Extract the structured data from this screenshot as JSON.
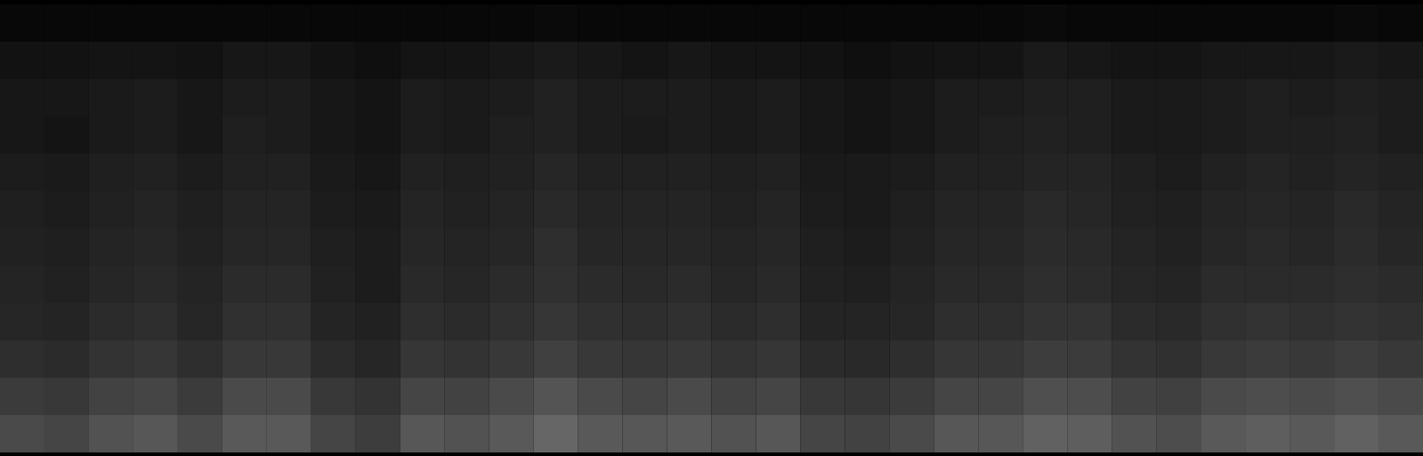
{
  "chart_data": {
    "type": "heatmap",
    "cells": [
      [
        0.03,
        0.03,
        0.03,
        0.03,
        0.03,
        0.03,
        0.03,
        0.03,
        0.03,
        0.03,
        0.03,
        0.03,
        0.04,
        0.03,
        0.03,
        0.03,
        0.03,
        0.03,
        0.03,
        0.03,
        0.03,
        0.03,
        0.03,
        0.04,
        0.03,
        0.03,
        0.03,
        0.03,
        0.03,
        0.03,
        0.04,
        0.03
      ],
      [
        0.07,
        0.07,
        0.08,
        0.08,
        0.07,
        0.09,
        0.09,
        0.07,
        0.06,
        0.08,
        0.08,
        0.09,
        0.1,
        0.09,
        0.08,
        0.09,
        0.08,
        0.08,
        0.07,
        0.06,
        0.07,
        0.08,
        0.08,
        0.1,
        0.09,
        0.08,
        0.08,
        0.09,
        0.09,
        0.09,
        0.1,
        0.09
      ],
      [
        0.09,
        0.09,
        0.1,
        0.11,
        0.09,
        0.11,
        0.11,
        0.09,
        0.08,
        0.11,
        0.1,
        0.11,
        0.13,
        0.11,
        0.11,
        0.11,
        0.1,
        0.11,
        0.09,
        0.08,
        0.09,
        0.11,
        0.11,
        0.12,
        0.12,
        0.1,
        0.1,
        0.11,
        0.12,
        0.11,
        0.12,
        0.11
      ],
      [
        0.09,
        0.08,
        0.1,
        0.11,
        0.09,
        0.12,
        0.11,
        0.09,
        0.08,
        0.11,
        0.1,
        0.12,
        0.13,
        0.11,
        0.1,
        0.11,
        0.1,
        0.11,
        0.09,
        0.08,
        0.09,
        0.11,
        0.12,
        0.13,
        0.12,
        0.1,
        0.1,
        0.11,
        0.12,
        0.12,
        0.13,
        0.11
      ],
      [
        0.11,
        0.1,
        0.12,
        0.13,
        0.11,
        0.13,
        0.13,
        0.1,
        0.09,
        0.13,
        0.12,
        0.13,
        0.15,
        0.13,
        0.13,
        0.13,
        0.12,
        0.13,
        0.1,
        0.1,
        0.11,
        0.13,
        0.13,
        0.14,
        0.14,
        0.12,
        0.11,
        0.13,
        0.14,
        0.13,
        0.14,
        0.13
      ],
      [
        0.12,
        0.11,
        0.13,
        0.14,
        0.12,
        0.14,
        0.14,
        0.11,
        0.1,
        0.14,
        0.13,
        0.14,
        0.16,
        0.14,
        0.14,
        0.14,
        0.13,
        0.14,
        0.11,
        0.1,
        0.12,
        0.14,
        0.14,
        0.16,
        0.15,
        0.13,
        0.12,
        0.14,
        0.15,
        0.14,
        0.16,
        0.14
      ],
      [
        0.13,
        0.12,
        0.14,
        0.15,
        0.13,
        0.15,
        0.15,
        0.12,
        0.11,
        0.15,
        0.14,
        0.15,
        0.18,
        0.15,
        0.15,
        0.15,
        0.14,
        0.15,
        0.12,
        0.11,
        0.13,
        0.15,
        0.15,
        0.17,
        0.16,
        0.14,
        0.13,
        0.15,
        0.16,
        0.15,
        0.17,
        0.15
      ],
      [
        0.14,
        0.13,
        0.15,
        0.16,
        0.14,
        0.17,
        0.17,
        0.13,
        0.11,
        0.16,
        0.15,
        0.17,
        0.19,
        0.17,
        0.16,
        0.17,
        0.15,
        0.16,
        0.13,
        0.12,
        0.14,
        0.16,
        0.16,
        0.18,
        0.17,
        0.15,
        0.14,
        0.17,
        0.17,
        0.17,
        0.18,
        0.17
      ],
      [
        0.15,
        0.14,
        0.17,
        0.18,
        0.15,
        0.19,
        0.19,
        0.14,
        0.13,
        0.18,
        0.17,
        0.19,
        0.21,
        0.19,
        0.18,
        0.19,
        0.17,
        0.18,
        0.14,
        0.14,
        0.15,
        0.18,
        0.18,
        0.2,
        0.2,
        0.17,
        0.16,
        0.19,
        0.2,
        0.19,
        0.2,
        0.19
      ],
      [
        0.18,
        0.17,
        0.2,
        0.21,
        0.18,
        0.22,
        0.22,
        0.17,
        0.15,
        0.21,
        0.2,
        0.22,
        0.25,
        0.22,
        0.21,
        0.22,
        0.2,
        0.21,
        0.17,
        0.16,
        0.18,
        0.21,
        0.21,
        0.24,
        0.23,
        0.2,
        0.19,
        0.22,
        0.23,
        0.22,
        0.24,
        0.22
      ],
      [
        0.23,
        0.22,
        0.26,
        0.27,
        0.23,
        0.29,
        0.29,
        0.22,
        0.2,
        0.27,
        0.26,
        0.29,
        0.33,
        0.29,
        0.27,
        0.29,
        0.26,
        0.27,
        0.22,
        0.21,
        0.23,
        0.27,
        0.27,
        0.31,
        0.3,
        0.26,
        0.25,
        0.29,
        0.3,
        0.29,
        0.31,
        0.29
      ],
      [
        0.29,
        0.27,
        0.32,
        0.34,
        0.29,
        0.35,
        0.35,
        0.27,
        0.24,
        0.34,
        0.32,
        0.35,
        0.4,
        0.35,
        0.34,
        0.35,
        0.32,
        0.34,
        0.27,
        0.26,
        0.29,
        0.34,
        0.34,
        0.38,
        0.37,
        0.32,
        0.3,
        0.35,
        0.37,
        0.35,
        0.38,
        0.35
      ]
    ],
    "color_range": [
      0,
      1
    ],
    "tick_labels": false
  }
}
